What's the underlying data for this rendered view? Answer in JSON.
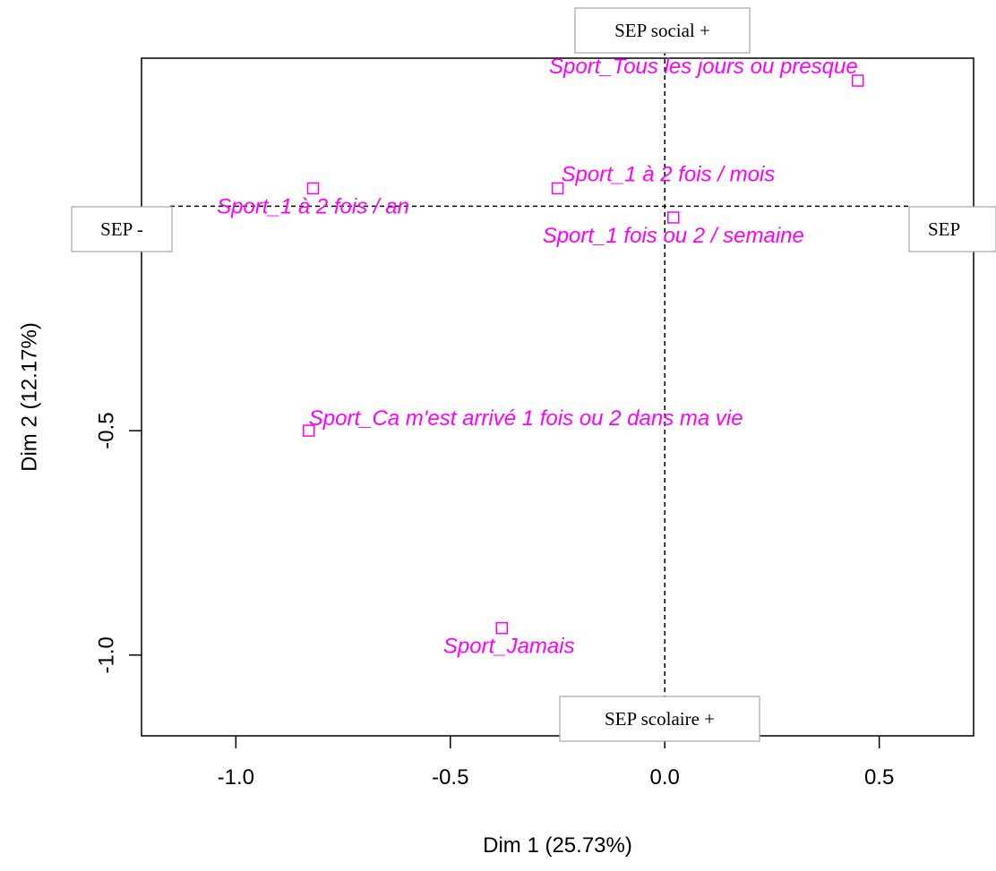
{
  "chart_data": {
    "type": "scatter",
    "xlabel": "Dim 1 (25.73%)",
    "ylabel": "Dim 2 (12.17%)",
    "xlim": [
      -1.22,
      0.72
    ],
    "ylim": [
      -1.18,
      0.33
    ],
    "xticks": [
      {
        "value": -1.0,
        "label": "-1.0"
      },
      {
        "value": -0.5,
        "label": "-0.5"
      },
      {
        "value": 0.0,
        "label": "0.0"
      },
      {
        "value": 0.5,
        "label": "0.5"
      }
    ],
    "yticks": [
      {
        "value": -0.5,
        "label": "-0.5"
      },
      {
        "value": -1.0,
        "label": "-1.0"
      }
    ],
    "reference_lines": {
      "x": 0,
      "y": 0,
      "style": "dashed"
    },
    "marker_color": "#ff00ff",
    "marker": "square",
    "points": [
      {
        "x": 0.45,
        "y": 0.28,
        "label": "Sport_Tous les jours ou presque",
        "label_anchor": "end",
        "label_dx": 0,
        "label_dy": -8
      },
      {
        "x": -0.25,
        "y": 0.04,
        "label": "Sport_1 à 2 fois / mois",
        "label_anchor": "start",
        "label_dx": 4,
        "label_dy": -8
      },
      {
        "x": -0.82,
        "y": 0.04,
        "label": "Sport_1 à 2 fois / an",
        "label_anchor": "middle",
        "label_dx": 0,
        "label_dy": 28
      },
      {
        "x": 0.02,
        "y": -0.025,
        "label": "Sport_1 fois ou 2 / semaine",
        "label_anchor": "middle",
        "label_dx": 0,
        "label_dy": 28
      },
      {
        "x": -0.83,
        "y": -0.5,
        "label": "Sport_Ca m'est arrivé 1 fois ou 2 dans ma vie",
        "label_anchor": "start",
        "label_dx": 0,
        "label_dy": -6
      },
      {
        "x": -0.38,
        "y": -0.94,
        "label": "Sport_Jamais",
        "label_anchor": "middle",
        "label_dx": 8,
        "label_dy": 28
      }
    ],
    "annotations": [
      {
        "text": "SEP social +",
        "position": "top-center"
      },
      {
        "text": "SEP -",
        "position": "left-middle"
      },
      {
        "text": "SEP",
        "position": "right-middle"
      },
      {
        "text": "SEP scolaire +",
        "position": "bottom-center"
      }
    ]
  }
}
